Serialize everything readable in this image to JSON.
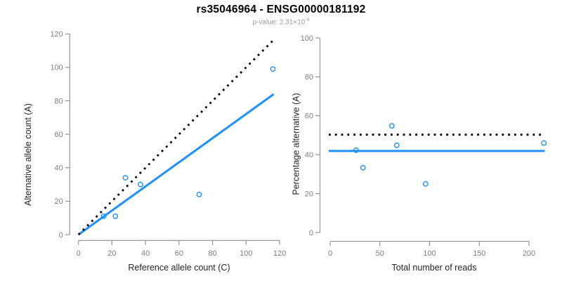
{
  "header": {
    "title": "rs35046964 - ENSG00000181192",
    "subtitle_prefix": "p-value: 2.31×10",
    "subtitle_exponent": "-4"
  },
  "colors": {
    "accent_blue": "#1e90ff",
    "black": "#000000",
    "axis_gray": "#8c8c8c",
    "tick_label_gray": "#7f7f7f",
    "axis_title_color": "#262626",
    "title_color": "#000000",
    "subtitle_gray": "#9a9a9a",
    "background": "#ffffff"
  },
  "chart_data": [
    {
      "id": "ref-vs-alt-scatter",
      "type": "scatter",
      "xlabel": "Reference allele count (C)",
      "ylabel": "Alternative allele count (A)",
      "xlim": [
        0,
        120
      ],
      "ylim": [
        0,
        120
      ],
      "xticks": [
        0,
        20,
        40,
        60,
        80,
        100,
        120
      ],
      "yticks": [
        0,
        20,
        40,
        60,
        80,
        100,
        120
      ],
      "grid": false,
      "legend": "none",
      "points": [
        [
          15,
          11
        ],
        [
          22,
          11
        ],
        [
          28,
          34
        ],
        [
          37,
          30
        ],
        [
          72,
          24
        ],
        [
          116,
          99
        ]
      ],
      "lines": [
        {
          "name": "fitted-allelic-ratio-line",
          "style": "solid",
          "color_key": "accent_blue",
          "x1": 0,
          "y1": 0,
          "x2": 116.5,
          "y2": 84
        },
        {
          "name": "identity-1to1-line",
          "style": "dotted",
          "color_key": "black",
          "x1": 0,
          "y1": 0,
          "x2": 116.8,
          "y2": 116.8
        }
      ]
    },
    {
      "id": "pct-vs-total-scatter",
      "type": "scatter",
      "xlabel": "Total number of reads",
      "ylabel": "Percentage alternative (A)",
      "xlim": [
        0,
        215
      ],
      "ylim": [
        0,
        100
      ],
      "xticks": [
        0,
        50,
        100,
        150,
        200
      ],
      "yticks": [
        0,
        20,
        40,
        60,
        80,
        100
      ],
      "grid": false,
      "legend": "none",
      "points": [
        [
          26,
          42.3
        ],
        [
          33,
          33.3
        ],
        [
          62,
          54.8
        ],
        [
          67,
          44.8
        ],
        [
          96,
          25
        ],
        [
          215,
          46
        ]
      ],
      "lines": [
        {
          "name": "fitted-percentage-line",
          "style": "solid",
          "color_key": "accent_blue",
          "hline": 41.9
        },
        {
          "name": "expected-50pct-line",
          "style": "dotted",
          "color_key": "black",
          "hline": 50.3
        }
      ]
    }
  ]
}
